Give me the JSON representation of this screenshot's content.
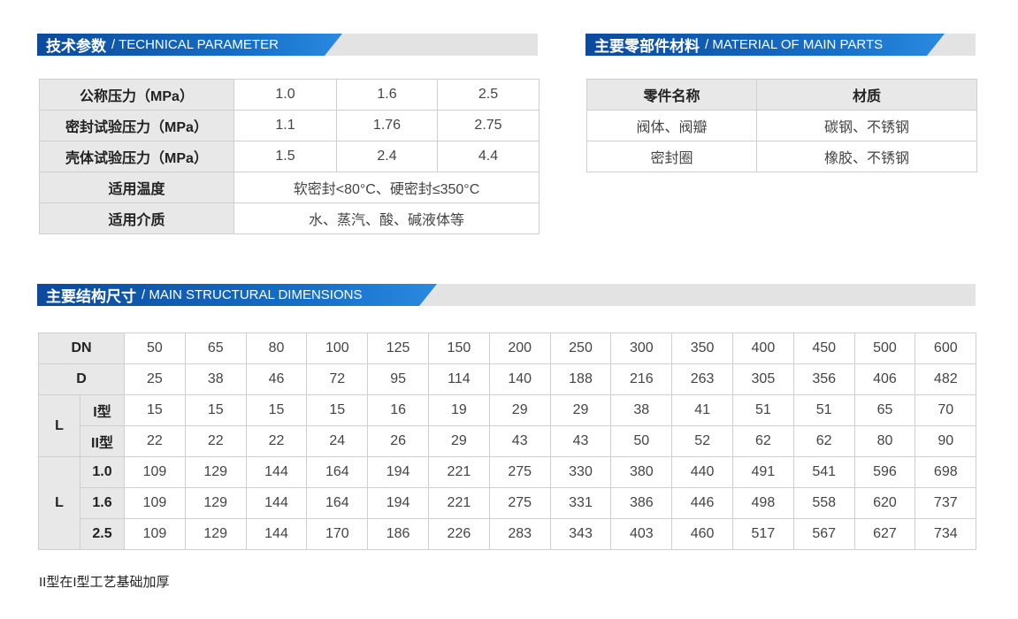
{
  "sections": {
    "technical": {
      "title_cn": "技术参数",
      "title_en": "/ TECHNICAL PARAMETER"
    },
    "materials": {
      "title_cn": "主要零部件材料",
      "title_en": "/ MATERIAL OF MAIN PARTS"
    },
    "dimensions": {
      "title_cn": "主要结构尺寸",
      "title_en": "/ MAIN STRUCTURAL DIMENSIONS"
    }
  },
  "technical_table": {
    "rows": [
      {
        "label": "公称压力（MPa）",
        "values": [
          "1.0",
          "1.6",
          "2.5"
        ]
      },
      {
        "label": "密封试验压力（MPa）",
        "values": [
          "1.1",
          "1.76",
          "2.75"
        ]
      },
      {
        "label": "壳体试验压力（MPa）",
        "values": [
          "1.5",
          "2.4",
          "4.4"
        ]
      },
      {
        "label": "适用温度",
        "values": [
          "软密封<80°C、硬密封≤350°C"
        ]
      },
      {
        "label": "适用介质",
        "values": [
          "水、蒸汽、酸、碱液体等"
        ]
      }
    ]
  },
  "materials_table": {
    "headers": [
      "零件名称",
      "材质"
    ],
    "rows": [
      [
        "阀体、阀瓣",
        "碳钢、不锈钢"
      ],
      [
        "密封圈",
        "橡胶、不锈钢"
      ]
    ]
  },
  "dimensions_table": {
    "rows": [
      {
        "group": "DN",
        "sub": "",
        "values": [
          "50",
          "65",
          "80",
          "100",
          "125",
          "150",
          "200",
          "250",
          "300",
          "350",
          "400",
          "450",
          "500",
          "600"
        ]
      },
      {
        "group": "D",
        "sub": "",
        "values": [
          "25",
          "38",
          "46",
          "72",
          "95",
          "114",
          "140",
          "188",
          "216",
          "263",
          "305",
          "356",
          "406",
          "482"
        ]
      },
      {
        "group": "L",
        "sub": "I型",
        "values": [
          "15",
          "15",
          "15",
          "15",
          "16",
          "19",
          "29",
          "29",
          "38",
          "41",
          "51",
          "51",
          "65",
          "70"
        ]
      },
      {
        "group": "L",
        "sub": "II型",
        "values": [
          "22",
          "22",
          "22",
          "24",
          "26",
          "29",
          "43",
          "43",
          "50",
          "52",
          "62",
          "62",
          "80",
          "90"
        ]
      },
      {
        "group": "L",
        "sub": "1.0",
        "values": [
          "109",
          "129",
          "144",
          "164",
          "194",
          "221",
          "275",
          "330",
          "380",
          "440",
          "491",
          "541",
          "596",
          "698"
        ]
      },
      {
        "group": "L",
        "sub": "1.6",
        "values": [
          "109",
          "129",
          "144",
          "164",
          "194",
          "221",
          "275",
          "331",
          "386",
          "446",
          "498",
          "558",
          "620",
          "737"
        ]
      },
      {
        "group": "L",
        "sub": "2.5",
        "values": [
          "109",
          "129",
          "144",
          "170",
          "186",
          "226",
          "283",
          "343",
          "403",
          "460",
          "517",
          "567",
          "627",
          "734"
        ]
      }
    ]
  },
  "note": "II型在I型工艺基础加厚",
  "colors": {
    "accent": "#1670c9",
    "header_bg": "#e8e8e8",
    "bar_bg": "#e3e3e3"
  }
}
